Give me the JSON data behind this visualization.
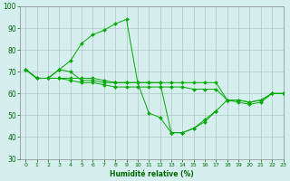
{
  "title": "",
  "xlabel": "Humidité relative (%)",
  "ylabel": "",
  "background_color": "#d5efef",
  "grid_color": "#b0c8c8",
  "line_color": "#00aa00",
  "marker_color": "#00aa00",
  "xlim": [
    -0.5,
    23
  ],
  "ylim": [
    30,
    100
  ],
  "yticks": [
    30,
    40,
    50,
    60,
    70,
    80,
    90,
    100
  ],
  "xticks": [
    0,
    1,
    2,
    3,
    4,
    5,
    6,
    7,
    8,
    9,
    10,
    11,
    12,
    13,
    14,
    15,
    16,
    17,
    18,
    19,
    20,
    21,
    22,
    23
  ],
  "series": [
    {
      "x": [
        0,
        1,
        2,
        3,
        4,
        5,
        6,
        7,
        8,
        9,
        10,
        11,
        12,
        13,
        14,
        15,
        16,
        17
      ],
      "y": [
        71,
        67,
        67,
        71,
        75,
        83,
        87,
        89,
        92,
        94,
        65,
        51,
        49,
        42,
        42,
        44,
        47,
        52
      ]
    },
    {
      "x": [
        0,
        1,
        2,
        3,
        4,
        5,
        6,
        7,
        8,
        9,
        10,
        11,
        12,
        13,
        14,
        15,
        16,
        17,
        18,
        19,
        20,
        21,
        22,
        23
      ],
      "y": [
        71,
        67,
        67,
        67,
        67,
        67,
        67,
        66,
        65,
        65,
        65,
        65,
        65,
        65,
        65,
        65,
        65,
        65,
        57,
        57,
        56,
        57,
        60,
        60
      ]
    },
    {
      "x": [
        0,
        1,
        2,
        3,
        4,
        5,
        6,
        7,
        8,
        9,
        10,
        11,
        12,
        13,
        14,
        15,
        16,
        17,
        18,
        19,
        20,
        21,
        22,
        23
      ],
      "y": [
        71,
        67,
        67,
        71,
        70,
        66,
        66,
        65,
        65,
        65,
        65,
        65,
        65,
        42,
        42,
        44,
        48,
        52,
        57,
        57,
        56,
        57,
        60,
        60
      ]
    },
    {
      "x": [
        0,
        1,
        2,
        3,
        4,
        5,
        6,
        7,
        8,
        9,
        10,
        11,
        12,
        13,
        14,
        15,
        16,
        17,
        18,
        19,
        20,
        21,
        22,
        23
      ],
      "y": [
        71,
        67,
        67,
        67,
        66,
        65,
        65,
        64,
        63,
        63,
        63,
        63,
        63,
        63,
        63,
        62,
        62,
        62,
        57,
        56,
        55,
        56,
        60,
        60
      ]
    }
  ]
}
